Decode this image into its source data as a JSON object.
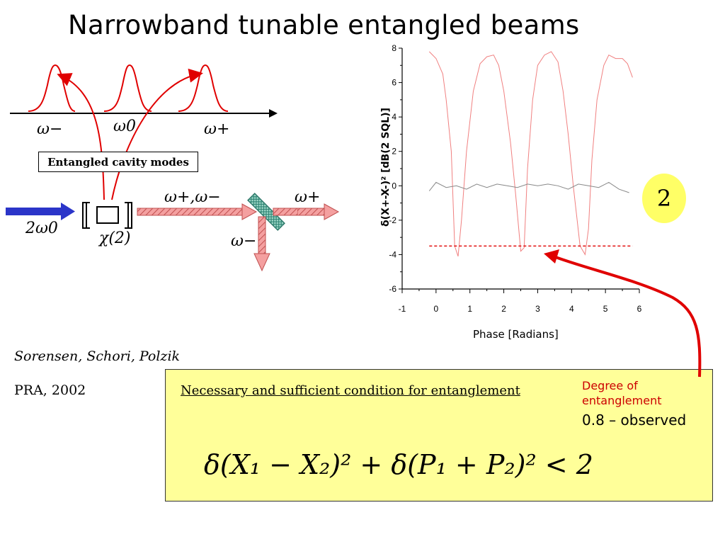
{
  "slide": {
    "title": "Narrowband tunable entangled beams",
    "authors": "Sorensen, Schori, Polzik",
    "journal": "PRA, 2002",
    "badge": "2",
    "box_label": "Entangled cavity modes",
    "condition_label": "Necessary and sufficient condition for entanglement",
    "formula": "δ(X₁ − X₂)² + δ(P₁ + P₂)² < 2",
    "degree_label_line1": "Degree of",
    "degree_label_line2": "entanglement",
    "observed": "0.8 – observed",
    "colors": {
      "accent_red": "#e00000",
      "box_yellow": "#ffff99",
      "arrow_blue": "#2b35c9",
      "beam_pink": "#f4a0a0"
    }
  },
  "diagram": {
    "labels": {
      "omega_minus": "ω−",
      "omega_zero": "ω0",
      "omega_plus": "ω+",
      "pump": "2ω0",
      "chi": "χ(2)",
      "beam_pair": "ω+,ω−",
      "out_plus": "ω+",
      "out_minus": "ω−"
    }
  },
  "chart_data": {
    "type": "line",
    "title": "",
    "xlabel": "Phase [Radians]",
    "ylabel": "δ(X+-X-)² [dB(2 SQL)]",
    "xlim": [
      -1,
      6
    ],
    "ylim": [
      -6,
      8
    ],
    "x_ticks": [
      "-1",
      "0",
      "1",
      "2",
      "3",
      "4",
      "5",
      "6"
    ],
    "y_ticks": [
      "-6",
      "-4",
      "-2",
      "0",
      "2",
      "4",
      "6",
      "8"
    ],
    "series": [
      {
        "color": "#f08080",
        "x": [
          -0.2,
          0.0,
          0.2,
          0.3,
          0.45,
          0.55,
          0.65,
          0.75,
          0.9,
          1.1,
          1.3,
          1.5,
          1.7,
          1.85,
          2.0,
          2.2,
          2.35,
          2.5,
          2.6,
          2.7,
          2.85,
          3.0,
          3.2,
          3.4,
          3.6,
          3.75,
          3.9,
          4.05,
          4.25,
          4.4,
          4.5,
          4.6,
          4.75,
          4.95,
          5.1,
          5.3,
          5.5,
          5.65,
          5.8
        ],
        "values": [
          7.8,
          7.4,
          6.5,
          5.0,
          2.0,
          -3.5,
          -4.1,
          -2.0,
          2.0,
          5.5,
          7.1,
          7.5,
          7.6,
          7.0,
          5.5,
          2.5,
          -0.5,
          -3.8,
          -3.6,
          1.0,
          5.0,
          7.0,
          7.6,
          7.8,
          7.2,
          5.5,
          3.0,
          0.0,
          -3.5,
          -4.0,
          -2.5,
          1.5,
          5.0,
          7.0,
          7.6,
          7.4,
          7.4,
          7.1,
          6.3
        ]
      },
      {
        "color": "#888888",
        "x": [
          -0.2,
          0.0,
          0.3,
          0.6,
          0.9,
          1.2,
          1.5,
          1.8,
          2.1,
          2.4,
          2.7,
          3.0,
          3.3,
          3.6,
          3.9,
          4.2,
          4.5,
          4.8,
          5.1,
          5.4,
          5.7
        ],
        "values": [
          -0.3,
          0.2,
          -0.1,
          0.0,
          -0.2,
          0.1,
          -0.1,
          0.1,
          0.0,
          -0.1,
          0.1,
          0.0,
          0.1,
          0.0,
          -0.2,
          0.1,
          0.0,
          -0.1,
          0.2,
          -0.2,
          -0.4
        ]
      },
      {
        "color": "#e00000",
        "dashed": true,
        "x": [
          -0.2,
          5.8
        ],
        "values": [
          -3.5,
          -3.5
        ]
      }
    ]
  }
}
